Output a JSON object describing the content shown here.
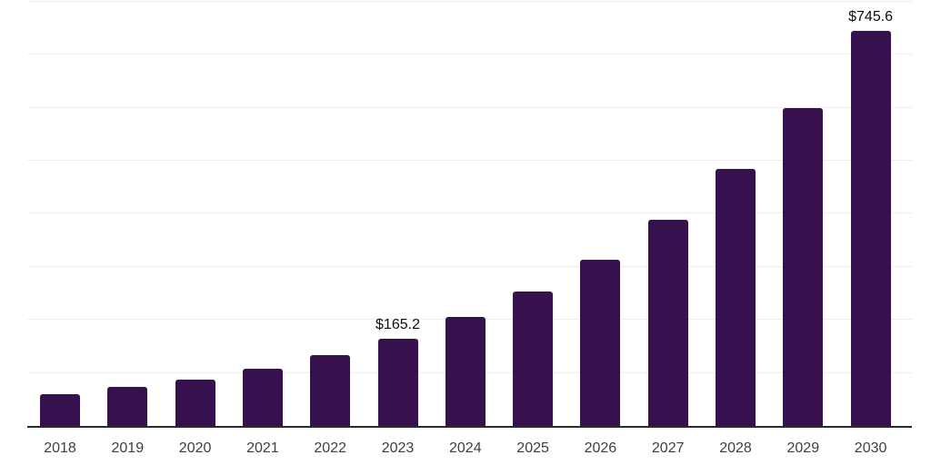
{
  "chart_data": {
    "type": "bar",
    "title": "",
    "subtitle": "",
    "xlabel": "",
    "ylabel": "",
    "categories": [
      "2018",
      "2019",
      "2020",
      "2021",
      "2022",
      "2023",
      "2024",
      "2025",
      "2026",
      "2027",
      "2028",
      "2029",
      "2030"
    ],
    "values": [
      60,
      73,
      87,
      108,
      134,
      165.2,
      206,
      253,
      314,
      389,
      484,
      600,
      745.6
    ],
    "point_labels": [
      "",
      "",
      "",
      "",
      "",
      "$165.2",
      "",
      "",
      "",
      "",
      "",
      "",
      "$745.6"
    ],
    "ylim": [
      0,
      800
    ],
    "gridline_step": 100,
    "grid": "horizontal",
    "y_axis_tick_labels": "none",
    "legend_position": "none",
    "colors": {
      "bar": "#37114E",
      "axis_line": "#2B2B2B",
      "gridline": "#EEEEEE",
      "tick_label": "#3F3F3F",
      "data_label": "#0F0F0F",
      "background": "#FFFFFF"
    }
  }
}
